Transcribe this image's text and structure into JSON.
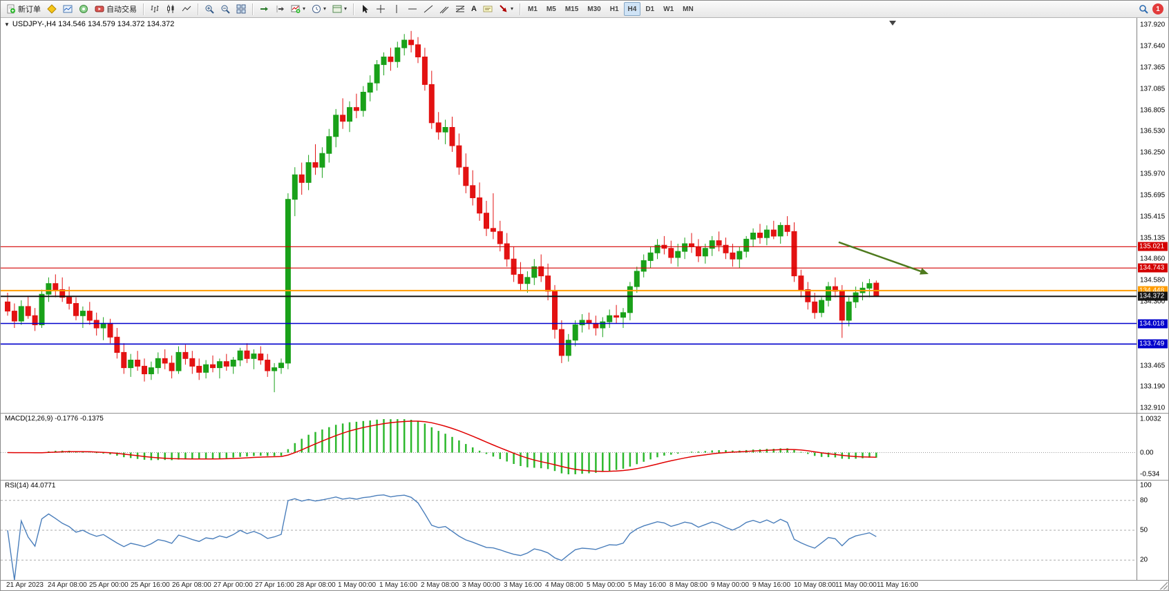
{
  "toolbar": {
    "new_order_label": "新订单",
    "autotrading_label": "自动交易",
    "timeframes": [
      "M1",
      "M5",
      "M15",
      "M30",
      "H1",
      "H4",
      "D1",
      "W1",
      "MN"
    ],
    "active_timeframe": "H4",
    "notification_count": "1"
  },
  "icons": {
    "caret": "▾",
    "one_click_trading": "▼",
    "text_tool": "A"
  },
  "chart": {
    "title": "USDJPY-,H4 134.546 134.579 134.372 134.372",
    "symbol": "USDJPY-",
    "timeframe": "H4",
    "open": "134.546",
    "high": "134.579",
    "low": "134.372",
    "close": "134.372"
  },
  "price_axis": [
    "137.920",
    "137.640",
    "137.365",
    "137.085",
    "136.805",
    "136.530",
    "136.250",
    "135.970",
    "135.695",
    "135.415",
    "135.135",
    "134.860",
    "134.580",
    "134.300",
    "134.025",
    "133.745",
    "133.465",
    "133.190",
    "132.910"
  ],
  "time_axis": [
    "21 Apr 2023",
    "24 Apr 08:00",
    "25 Apr 00:00",
    "25 Apr 16:00",
    "26 Apr 08:00",
    "27 Apr 00:00",
    "27 Apr 16:00",
    "28 Apr 08:00",
    "1 May 00:00",
    "1 May 16:00",
    "2 May 08:00",
    "3 May 00:00",
    "3 May 16:00",
    "4 May 08:00",
    "5 May 00:00",
    "5 May 16:00",
    "8 May 08:00",
    "9 May 00:00",
    "9 May 16:00",
    "10 May 08:00",
    "11 May 00:00",
    "11 May 16:00"
  ],
  "levels": [
    {
      "label": "135.021",
      "price": 135.021,
      "color": "#d40000",
      "width": 1.2
    },
    {
      "label": "134.743",
      "price": 134.743,
      "color": "#d40000",
      "width": 1.2
    },
    {
      "label": "134.448",
      "price": 134.448,
      "color": "#ff9c00",
      "width": 2
    },
    {
      "label": "134.372",
      "price": 134.372,
      "color": "#151515",
      "width": 2
    },
    {
      "label": "134.018",
      "price": 134.018,
      "color": "#0000cc",
      "width": 1.6
    },
    {
      "label": "133.749",
      "price": 133.749,
      "color": "#0000cc",
      "width": 1.6
    }
  ],
  "indicators": {
    "macd": {
      "name": "MACD(12,26,9)",
      "values": "-0.1776 -0.1375",
      "label": "MACD(12,26,9) -0.1776 -0.1375",
      "axis": [
        "1.0032",
        "0.00",
        "-0.534"
      ]
    },
    "rsi": {
      "name": "RSI(14)",
      "value": "44.0771",
      "label": "RSI(14) 44.0771",
      "axis": [
        "100",
        "80",
        "50",
        "20"
      ],
      "levels": [
        80,
        50,
        20
      ]
    }
  },
  "colors": {
    "bull": "#19a119",
    "bear": "#e31212",
    "macd_hist": "#2db82d",
    "macd_signal": "#e00000",
    "rsi_line": "#4a7ebb",
    "arrow": "#4e7a1e",
    "level_red": "#d40000",
    "level_blue": "#0000cc",
    "level_orange": "#ff9c00",
    "current_price_tag": "#151515"
  },
  "chart_data": {
    "type": "candlestick",
    "symbol": "USDJPY",
    "timeframe": "H4",
    "price_range": [
      132.85,
      138.01
    ],
    "candles": [
      [
        134.3,
        134.42,
        134.12,
        134.18
      ],
      [
        134.18,
        134.28,
        133.96,
        134.05
      ],
      [
        134.05,
        134.32,
        134.0,
        134.24
      ],
      [
        134.24,
        134.38,
        134.08,
        134.12
      ],
      [
        134.12,
        134.22,
        133.92,
        134.0
      ],
      [
        134.0,
        134.46,
        133.96,
        134.4
      ],
      [
        134.4,
        134.62,
        134.3,
        134.54
      ],
      [
        134.54,
        134.66,
        134.36,
        134.46
      ],
      [
        134.46,
        134.62,
        134.3,
        134.36
      ],
      [
        134.36,
        134.5,
        134.2,
        134.28
      ],
      [
        134.28,
        134.36,
        134.06,
        134.12
      ],
      [
        134.12,
        134.24,
        133.96,
        134.18
      ],
      [
        134.18,
        134.3,
        134.0,
        134.06
      ],
      [
        134.06,
        134.16,
        133.86,
        133.96
      ],
      [
        133.96,
        134.1,
        133.8,
        134.02
      ],
      [
        134.02,
        134.08,
        133.76,
        133.84
      ],
      [
        133.84,
        133.96,
        133.56,
        133.64
      ],
      [
        133.64,
        133.76,
        133.36,
        133.44
      ],
      [
        133.44,
        133.62,
        133.32,
        133.54
      ],
      [
        133.54,
        133.66,
        133.4,
        133.46
      ],
      [
        133.46,
        133.56,
        133.26,
        133.36
      ],
      [
        133.36,
        133.52,
        133.28,
        133.44
      ],
      [
        133.44,
        133.64,
        133.36,
        133.56
      ],
      [
        133.56,
        133.68,
        133.42,
        133.5
      ],
      [
        133.5,
        133.6,
        133.3,
        133.4
      ],
      [
        133.4,
        133.72,
        133.36,
        133.64
      ],
      [
        133.64,
        133.74,
        133.48,
        133.56
      ],
      [
        133.56,
        133.66,
        133.36,
        133.46
      ],
      [
        133.46,
        133.56,
        133.28,
        133.38
      ],
      [
        133.38,
        133.54,
        133.3,
        133.48
      ],
      [
        133.48,
        133.6,
        133.38,
        133.44
      ],
      [
        133.44,
        133.56,
        133.3,
        133.52
      ],
      [
        133.52,
        133.62,
        133.4,
        133.46
      ],
      [
        133.46,
        133.58,
        133.36,
        133.54
      ],
      [
        133.54,
        133.7,
        133.46,
        133.66
      ],
      [
        133.66,
        133.76,
        133.5,
        133.56
      ],
      [
        133.56,
        133.68,
        133.42,
        133.62
      ],
      [
        133.62,
        133.72,
        133.48,
        133.54
      ],
      [
        133.54,
        133.62,
        133.32,
        133.4
      ],
      [
        133.4,
        133.5,
        133.12,
        133.44
      ],
      [
        133.44,
        133.56,
        133.36,
        133.5
      ],
      [
        133.5,
        135.72,
        133.42,
        135.64
      ],
      [
        135.64,
        136.06,
        135.42,
        135.96
      ],
      [
        135.96,
        136.12,
        135.7,
        135.86
      ],
      [
        135.86,
        136.22,
        135.76,
        136.12
      ],
      [
        136.12,
        136.36,
        135.96,
        136.06
      ],
      [
        136.06,
        136.32,
        135.92,
        136.24
      ],
      [
        136.24,
        136.56,
        136.12,
        136.46
      ],
      [
        136.46,
        136.82,
        136.32,
        136.74
      ],
      [
        136.74,
        136.96,
        136.56,
        136.66
      ],
      [
        136.66,
        136.92,
        136.52,
        136.84
      ],
      [
        136.84,
        137.02,
        136.7,
        136.8
      ],
      [
        136.8,
        137.12,
        136.72,
        137.04
      ],
      [
        137.04,
        137.26,
        136.92,
        137.16
      ],
      [
        137.16,
        137.46,
        137.06,
        137.4
      ],
      [
        137.4,
        137.56,
        137.26,
        137.5
      ],
      [
        137.5,
        137.62,
        137.32,
        137.44
      ],
      [
        137.44,
        137.7,
        137.36,
        137.62
      ],
      [
        137.62,
        137.8,
        137.52,
        137.72
      ],
      [
        137.72,
        137.84,
        137.56,
        137.66
      ],
      [
        137.66,
        137.76,
        137.42,
        137.5
      ],
      [
        137.5,
        137.62,
        137.06,
        137.14
      ],
      [
        137.14,
        137.32,
        136.56,
        136.64
      ],
      [
        136.64,
        136.78,
        136.42,
        136.52
      ],
      [
        136.52,
        136.68,
        136.36,
        136.58
      ],
      [
        136.58,
        136.72,
        136.26,
        136.34
      ],
      [
        136.34,
        136.5,
        135.96,
        136.06
      ],
      [
        136.06,
        136.24,
        135.72,
        135.82
      ],
      [
        135.82,
        136.02,
        135.56,
        135.66
      ],
      [
        135.66,
        135.86,
        135.36,
        135.46
      ],
      [
        135.46,
        135.62,
        135.16,
        135.26
      ],
      [
        135.26,
        135.72,
        135.12,
        135.22
      ],
      [
        135.22,
        135.36,
        134.96,
        135.06
      ],
      [
        135.06,
        135.2,
        134.76,
        134.86
      ],
      [
        134.86,
        135.02,
        134.56,
        134.66
      ],
      [
        134.66,
        134.82,
        134.44,
        134.54
      ],
      [
        134.54,
        134.7,
        134.42,
        134.62
      ],
      [
        134.62,
        134.86,
        134.52,
        134.76
      ],
      [
        134.76,
        134.92,
        134.56,
        134.64
      ],
      [
        134.64,
        134.8,
        134.32,
        134.44
      ],
      [
        134.44,
        134.52,
        133.82,
        133.94
      ],
      [
        133.94,
        134.06,
        133.5,
        133.6
      ],
      [
        133.6,
        133.88,
        133.52,
        133.8
      ],
      [
        133.8,
        134.06,
        133.72,
        134.0
      ],
      [
        134.0,
        134.14,
        133.9,
        134.06
      ],
      [
        134.06,
        134.16,
        133.94,
        134.02
      ],
      [
        134.02,
        134.12,
        133.86,
        133.96
      ],
      [
        133.96,
        134.1,
        133.84,
        134.04
      ],
      [
        134.04,
        134.2,
        133.96,
        134.12
      ],
      [
        134.12,
        134.26,
        134.02,
        134.1
      ],
      [
        134.1,
        134.22,
        133.96,
        134.16
      ],
      [
        134.16,
        134.56,
        134.06,
        134.5
      ],
      [
        134.5,
        134.76,
        134.42,
        134.7
      ],
      [
        134.7,
        134.92,
        134.62,
        134.84
      ],
      [
        134.84,
        135.02,
        134.74,
        134.94
      ],
      [
        134.94,
        135.12,
        134.86,
        135.04
      ],
      [
        135.04,
        135.16,
        134.92,
        135.0
      ],
      [
        135.0,
        135.1,
        134.8,
        134.88
      ],
      [
        134.88,
        135.06,
        134.76,
        134.96
      ],
      [
        134.96,
        135.14,
        134.86,
        135.06
      ],
      [
        135.06,
        135.2,
        134.94,
        135.02
      ],
      [
        135.02,
        135.12,
        134.82,
        134.9
      ],
      [
        134.9,
        135.06,
        134.8,
        135.0
      ],
      [
        135.0,
        135.16,
        134.9,
        135.1
      ],
      [
        135.1,
        135.22,
        134.96,
        135.04
      ],
      [
        135.04,
        135.14,
        134.86,
        134.94
      ],
      [
        134.94,
        135.06,
        134.76,
        134.86
      ],
      [
        134.86,
        135.02,
        134.74,
        134.96
      ],
      [
        134.96,
        135.16,
        134.88,
        135.12
      ],
      [
        135.12,
        135.26,
        135.02,
        135.2
      ],
      [
        135.2,
        135.32,
        135.06,
        135.14
      ],
      [
        135.14,
        135.3,
        135.04,
        135.24
      ],
      [
        135.24,
        135.36,
        135.12,
        135.16
      ],
      [
        135.16,
        135.34,
        135.06,
        135.3
      ],
      [
        135.3,
        135.42,
        135.16,
        135.22
      ],
      [
        135.22,
        135.34,
        134.56,
        134.64
      ],
      [
        134.64,
        134.72,
        134.36,
        134.46
      ],
      [
        134.46,
        134.56,
        134.2,
        134.3
      ],
      [
        134.3,
        134.42,
        134.08,
        134.16
      ],
      [
        134.16,
        134.36,
        134.1,
        134.32
      ],
      [
        134.32,
        134.56,
        134.24,
        134.5
      ],
      [
        134.5,
        134.62,
        134.36,
        134.44
      ],
      [
        134.44,
        134.52,
        133.83,
        134.06
      ],
      [
        134.06,
        134.36,
        133.98,
        134.3
      ],
      [
        134.3,
        134.5,
        134.22,
        134.42
      ],
      [
        134.42,
        134.56,
        134.32,
        134.48
      ],
      [
        134.48,
        134.6,
        134.36,
        134.54
      ],
      [
        134.546,
        134.579,
        134.372,
        134.372
      ]
    ],
    "annotation_arrow": {
      "from": {
        "index": 121.5,
        "price": 135.08
      },
      "to": {
        "index": 133.5,
        "price": 134.7
      },
      "color": "#4e7a1e"
    }
  }
}
